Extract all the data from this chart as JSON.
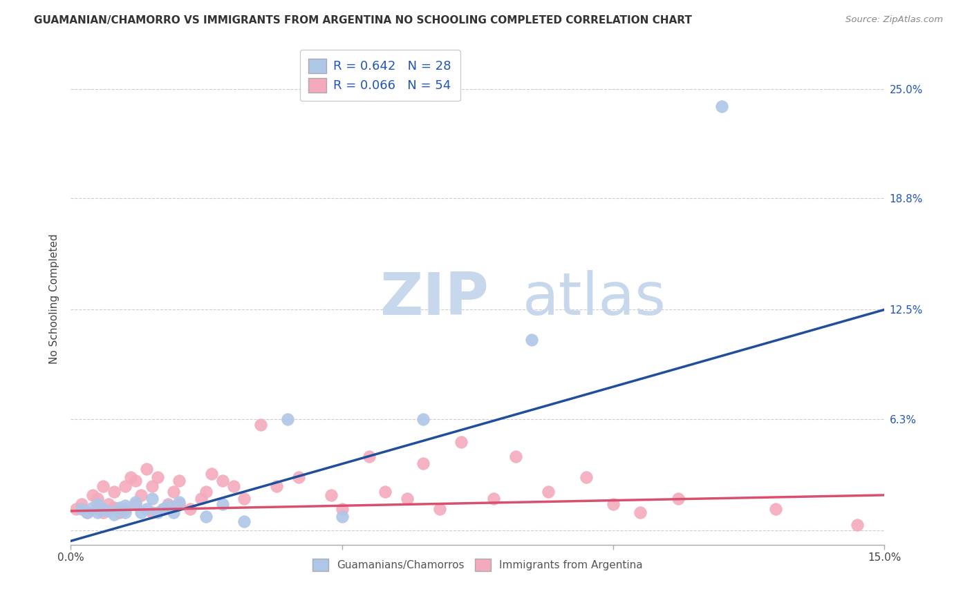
{
  "title": "GUAMANIAN/CHAMORRO VS IMMIGRANTS FROM ARGENTINA NO SCHOOLING COMPLETED CORRELATION CHART",
  "source": "Source: ZipAtlas.com",
  "ylabel": "No Schooling Completed",
  "xlim": [
    0.0,
    0.15
  ],
  "ylim": [
    -0.008,
    0.27
  ],
  "yticks": [
    0.0,
    0.063,
    0.125,
    0.188,
    0.25
  ],
  "ytick_labels": [
    "",
    "6.3%",
    "12.5%",
    "18.8%",
    "25.0%"
  ],
  "xticks": [
    0.0,
    0.05,
    0.1,
    0.15
  ],
  "xtick_labels": [
    "0.0%",
    "",
    "",
    "15.0%"
  ],
  "blue_R": 0.642,
  "blue_N": 28,
  "pink_R": 0.066,
  "pink_N": 54,
  "blue_color": "#aec6e8",
  "pink_color": "#f4aabc",
  "blue_line_color": "#1f4e9c",
  "pink_line_color": "#d94f6e",
  "legend_blue_label": "Guamanians/Chamorros",
  "legend_pink_label": "Immigrants from Argentina",
  "blue_trendline_x": [
    0.0,
    0.15
  ],
  "blue_trendline_y": [
    -0.006,
    0.125
  ],
  "pink_trendline_x": [
    0.0,
    0.15
  ],
  "pink_trendline_y": [
    0.011,
    0.02
  ],
  "grid_color": "#cccccc",
  "bg_color": "#ffffff",
  "blue_scatter_x": [
    0.002,
    0.003,
    0.004,
    0.005,
    0.005,
    0.006,
    0.007,
    0.008,
    0.009,
    0.01,
    0.01,
    0.012,
    0.013,
    0.014,
    0.015,
    0.016,
    0.017,
    0.018,
    0.019,
    0.02,
    0.025,
    0.028,
    0.032,
    0.04,
    0.05,
    0.065,
    0.085,
    0.12
  ],
  "blue_scatter_y": [
    0.012,
    0.01,
    0.013,
    0.015,
    0.01,
    0.012,
    0.011,
    0.009,
    0.013,
    0.01,
    0.014,
    0.016,
    0.01,
    0.012,
    0.018,
    0.01,
    0.012,
    0.014,
    0.01,
    0.016,
    0.008,
    0.015,
    0.005,
    0.063,
    0.008,
    0.063,
    0.108,
    0.24
  ],
  "pink_scatter_x": [
    0.001,
    0.002,
    0.003,
    0.004,
    0.005,
    0.005,
    0.006,
    0.006,
    0.007,
    0.008,
    0.008,
    0.009,
    0.01,
    0.01,
    0.011,
    0.012,
    0.012,
    0.013,
    0.014,
    0.015,
    0.015,
    0.016,
    0.017,
    0.018,
    0.019,
    0.02,
    0.02,
    0.022,
    0.024,
    0.025,
    0.026,
    0.028,
    0.03,
    0.032,
    0.035,
    0.038,
    0.042,
    0.048,
    0.05,
    0.055,
    0.058,
    0.062,
    0.065,
    0.068,
    0.072,
    0.078,
    0.082,
    0.088,
    0.095,
    0.1,
    0.105,
    0.112,
    0.13,
    0.145
  ],
  "pink_scatter_y": [
    0.012,
    0.015,
    0.01,
    0.02,
    0.012,
    0.018,
    0.01,
    0.025,
    0.015,
    0.013,
    0.022,
    0.01,
    0.025,
    0.012,
    0.03,
    0.015,
    0.028,
    0.02,
    0.035,
    0.025,
    0.01,
    0.03,
    0.012,
    0.015,
    0.022,
    0.028,
    0.015,
    0.012,
    0.018,
    0.022,
    0.032,
    0.028,
    0.025,
    0.018,
    0.06,
    0.025,
    0.03,
    0.02,
    0.012,
    0.042,
    0.022,
    0.018,
    0.038,
    0.012,
    0.05,
    0.018,
    0.042,
    0.022,
    0.03,
    0.015,
    0.01,
    0.018,
    0.012,
    0.003
  ]
}
